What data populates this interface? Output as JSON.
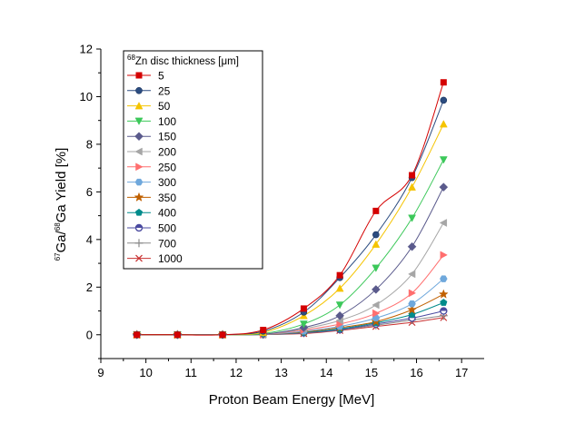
{
  "chart_data": {
    "type": "line",
    "xlabel": "Proton Beam Energy [MeV]",
    "ylabel": {
      "isoA": "67",
      "elA": "Ga/",
      "isoB": "68",
      "elB": "Ga Yield [%]"
    },
    "xlim": [
      9,
      17.5
    ],
    "ylim": [
      -1,
      12
    ],
    "x_ticks": [
      9,
      10,
      11,
      12,
      13,
      14,
      15,
      16,
      17
    ],
    "y_ticks": [
      0,
      2,
      4,
      6,
      8,
      10,
      12
    ],
    "grid": false,
    "legend_position": "top-left",
    "legend_title": {
      "iso": "68",
      "text": "Zn disc thickness [",
      "mu": "μ",
      "unit": "m]"
    },
    "x": [
      9.8,
      10.7,
      11.7,
      12.6,
      13.5,
      14.3,
      15.1,
      15.9,
      16.6
    ],
    "series": [
      {
        "name": "5",
        "color": "#d40000",
        "marker": "square",
        "values": [
          0,
          0,
          0,
          0.2,
          1.1,
          2.5,
          5.2,
          6.7,
          10.6
        ]
      },
      {
        "name": "25",
        "color": "#2b4c80",
        "marker": "circle",
        "values": [
          0,
          0,
          0,
          0.15,
          0.95,
          2.4,
          4.2,
          6.6,
          9.85
        ]
      },
      {
        "name": "50",
        "color": "#f5c400",
        "marker": "triangle-up",
        "values": [
          0,
          0,
          0,
          0.1,
          0.8,
          1.95,
          3.8,
          6.2,
          8.85
        ]
      },
      {
        "name": "100",
        "color": "#3cc85a",
        "marker": "triangle-down",
        "values": [
          0,
          0,
          0,
          0.05,
          0.45,
          1.25,
          2.8,
          4.9,
          7.35
        ]
      },
      {
        "name": "150",
        "color": "#5a5a8c",
        "marker": "diamond",
        "values": [
          0,
          0,
          0,
          0.02,
          0.3,
          0.8,
          1.9,
          3.7,
          6.2
        ]
      },
      {
        "name": "200",
        "color": "#a6a6a6",
        "marker": "triangle-left",
        "values": [
          0,
          0,
          0,
          0.02,
          0.25,
          0.6,
          1.25,
          2.55,
          4.7
        ]
      },
      {
        "name": "250",
        "color": "#ff6e6e",
        "marker": "triangle-right",
        "values": [
          0,
          0,
          0,
          0.01,
          0.2,
          0.45,
          0.9,
          1.75,
          3.35
        ]
      },
      {
        "name": "300",
        "color": "#6fa8dc",
        "marker": "hexagon",
        "values": [
          0,
          0,
          0,
          0.01,
          0.15,
          0.35,
          0.7,
          1.3,
          2.35
        ]
      },
      {
        "name": "350",
        "color": "#c06000",
        "marker": "star",
        "values": [
          0,
          0,
          0,
          0.01,
          0.12,
          0.3,
          0.55,
          1.05,
          1.7
        ]
      },
      {
        "name": "400",
        "color": "#008b8b",
        "marker": "pentagon",
        "values": [
          0,
          0,
          0,
          0.01,
          0.1,
          0.25,
          0.5,
          0.85,
          1.35
        ]
      },
      {
        "name": "500",
        "color": "#4b4ba0",
        "marker": "circle-half",
        "values": [
          0,
          0,
          0,
          0.01,
          0.08,
          0.22,
          0.45,
          0.7,
          1.0
        ]
      },
      {
        "name": "700",
        "color": "#8a8a8a",
        "marker": "plus",
        "values": [
          0,
          0,
          0,
          0.01,
          0.07,
          0.2,
          0.4,
          0.62,
          0.8
        ]
      },
      {
        "name": "1000",
        "color": "#c83030",
        "marker": "cross",
        "values": [
          0,
          0,
          0,
          0.01,
          0.05,
          0.18,
          0.35,
          0.52,
          0.72
        ]
      }
    ]
  }
}
